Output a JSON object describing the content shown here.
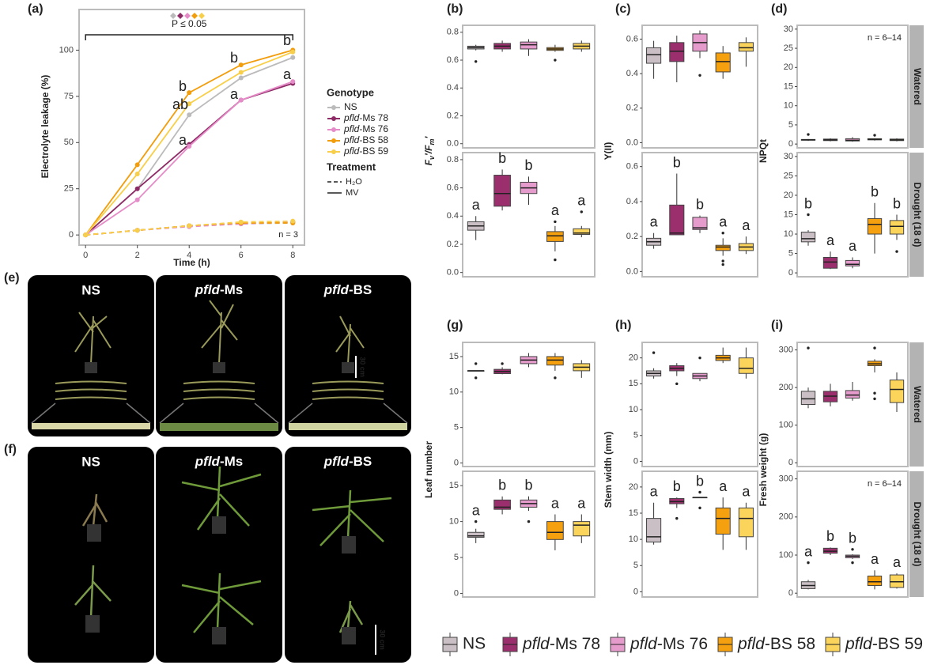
{
  "genotypes": [
    {
      "name": "NS",
      "color": "#c9bfc4"
    },
    {
      "name": "pfld-Ms 78",
      "color": "#9b2f6e"
    },
    {
      "name": "pfld-Ms 76",
      "color": "#e59ccc"
    },
    {
      "name": "pfld-BS 58",
      "color": "#f5a00f"
    },
    {
      "name": "pfld-BS 59",
      "color": "#fbd45c"
    }
  ],
  "chart_data": [
    {
      "type": "line",
      "label": "(a)",
      "ylabel": "Electrolyte leakage (%)",
      "xlabel": "Time (h)",
      "x": [
        0,
        2,
        4,
        6,
        8
      ],
      "xlim": [
        -0.25,
        8.45
      ],
      "xticks": [
        0,
        2,
        4,
        6,
        8
      ],
      "ylim": [
        -5.5,
        122
      ],
      "yticks": [
        0,
        25,
        50,
        75,
        100
      ],
      "p_label": "P ≤ 0.05",
      "n_label": "n = 3",
      "letters": [
        "b",
        "a",
        "b",
        "a",
        "b",
        "ab",
        "a"
      ],
      "legend_title": "Genotype",
      "treatment_title": "Treatment",
      "treatments": [
        {
          "name": "H₂O",
          "dashed": true
        },
        {
          "name": "MV",
          "dashed": false
        }
      ],
      "series": [
        {
          "name": "NS",
          "color": "#bbbbbb",
          "values": [
            0,
            25,
            65,
            85,
            96
          ],
          "values_h2o": [
            0,
            2.5,
            5,
            6,
            6.5
          ]
        },
        {
          "name": "pfld-Ms 78",
          "color": "#8e2a66",
          "values": [
            0,
            25,
            49,
            73,
            82
          ],
          "values_h2o": [
            0,
            2.5,
            5,
            6.5,
            7
          ]
        },
        {
          "name": "pfld-Ms 76",
          "color": "#e58cc8",
          "values": [
            0,
            19,
            48,
            73,
            83
          ],
          "values_h2o": [
            0,
            2.5,
            4.5,
            6,
            7
          ]
        },
        {
          "name": "pfld-BS 58",
          "color": "#f29d0c",
          "values": [
            0,
            38,
            77,
            92,
            100
          ],
          "values_h2o": [
            0,
            2.5,
            5,
            6.5,
            6.5
          ]
        },
        {
          "name": "pfld-BS 59",
          "color": "#f8cf4a",
          "values": [
            0,
            33,
            71,
            88,
            99
          ],
          "values_h2o": [
            0,
            2.5,
            5,
            7,
            7.5
          ]
        }
      ]
    },
    {
      "type": "box",
      "label": "(b)",
      "ylabel": [
        {
          "text": "F"
        },
        {
          "text": "v",
          "sub": true
        },
        {
          "text": "′/F"
        },
        {
          "text": "m",
          "sub": true
        },
        {
          "text": "′"
        }
      ],
      "ylim": [
        -0.03,
        0.85
      ],
      "yticks": [
        {
          "value": 0,
          "label": "0.0"
        },
        0.2,
        0.4,
        0.6,
        0.8
      ],
      "facets": [
        {
          "boxes": [
            {
              "stats": [
                0.67,
                0.68,
                0.69,
                0.7,
                0.71
              ],
              "outliers": [
                0.59
              ]
            },
            {
              "stats": [
                0.66,
                0.68,
                0.7,
                0.72,
                0.74
              ],
              "outliers": []
            },
            {
              "stats": [
                0.63,
                0.68,
                0.71,
                0.73,
                0.75
              ],
              "outliers": []
            },
            {
              "stats": [
                0.66,
                0.67,
                0.68,
                0.69,
                0.71
              ],
              "outliers": [
                0.6
              ]
            },
            {
              "stats": [
                0.66,
                0.68,
                0.7,
                0.72,
                0.74
              ],
              "outliers": []
            }
          ]
        },
        {
          "boxes": [
            {
              "stats": [
                0.23,
                0.3,
                0.33,
                0.36,
                0.4
              ],
              "outliers": []
            },
            {
              "stats": [
                0.44,
                0.47,
                0.56,
                0.69,
                0.73
              ],
              "outliers": []
            },
            {
              "stats": [
                0.48,
                0.56,
                0.6,
                0.64,
                0.68
              ],
              "outliers": []
            },
            {
              "stats": [
                0.15,
                0.22,
                0.26,
                0.29,
                0.33
              ],
              "outliers": [
                0.09,
                0.36
              ]
            },
            {
              "stats": [
                0.25,
                0.27,
                0.28,
                0.31,
                0.33
              ],
              "outliers": [
                0.43
              ]
            }
          ],
          "letters": [
            "a",
            "b",
            "b",
            "a",
            "a"
          ]
        }
      ]
    },
    {
      "type": "box",
      "label": "(c)",
      "ylabel": "Y(II)",
      "ylim": [
        -0.03,
        0.68
      ],
      "yticks": [
        {
          "value": 0,
          "label": "0.0"
        },
        0.2,
        0.4,
        0.6
      ],
      "facets": [
        {
          "boxes": [
            {
              "stats": [
                0.37,
                0.46,
                0.51,
                0.55,
                0.59
              ],
              "outliers": []
            },
            {
              "stats": [
                0.35,
                0.47,
                0.53,
                0.58,
                0.62
              ],
              "outliers": []
            },
            {
              "stats": [
                0.49,
                0.53,
                0.58,
                0.63,
                0.65
              ],
              "outliers": [
                0.39
              ]
            },
            {
              "stats": [
                0.37,
                0.41,
                0.47,
                0.52,
                0.56
              ],
              "outliers": []
            },
            {
              "stats": [
                0.44,
                0.53,
                0.55,
                0.58,
                0.61
              ],
              "outliers": []
            }
          ]
        },
        {
          "boxes": [
            {
              "stats": [
                0.13,
                0.15,
                0.17,
                0.19,
                0.22
              ],
              "outliers": []
            },
            {
              "stats": [
                0.21,
                0.21,
                0.22,
                0.38,
                0.56
              ],
              "outliers": []
            },
            {
              "stats": [
                0.22,
                0.24,
                0.25,
                0.31,
                0.32
              ],
              "outliers": []
            },
            {
              "stats": [
                0.09,
                0.12,
                0.14,
                0.15,
                0.19
              ],
              "outliers": [
                0.22,
                0.06,
                0.04
              ]
            },
            {
              "stats": [
                0.1,
                0.12,
                0.14,
                0.16,
                0.2
              ],
              "outliers": []
            }
          ],
          "letters": [
            "a",
            "b",
            "b",
            "a",
            "a"
          ]
        }
      ]
    },
    {
      "type": "box",
      "label": "(d)",
      "ylabel": "NPQt",
      "ylim": [
        -1,
        31
      ],
      "yticks": [
        0,
        5,
        10,
        15,
        20,
        25,
        30
      ],
      "facets": [
        {
          "name": "Watered",
          "note": "n = 6–14",
          "boxes": [
            {
              "stats": [
                0.8,
                1.0,
                1.1,
                1.2,
                1.3
              ],
              "outliers": [
                2.5
              ]
            },
            {
              "stats": [
                0.7,
                0.9,
                1.1,
                1.3,
                1.5
              ],
              "outliers": []
            },
            {
              "stats": [
                0.6,
                0.8,
                1.0,
                1.4,
                1.8
              ],
              "outliers": []
            },
            {
              "stats": [
                0.9,
                1.1,
                1.2,
                1.4,
                1.5
              ],
              "outliers": [
                2.3
              ]
            },
            {
              "stats": [
                0.7,
                0.9,
                1.1,
                1.3,
                1.5
              ],
              "outliers": []
            }
          ]
        },
        {
          "name": "Drought (18 d)",
          "boxes": [
            {
              "stats": [
                7,
                8,
                8.8,
                10.5,
                11
              ],
              "outliers": [
                15
              ]
            },
            {
              "stats": [
                1,
                1.2,
                2.8,
                4,
                5.5
              ],
              "outliers": []
            },
            {
              "stats": [
                1.2,
                1.8,
                2.2,
                3.2,
                4
              ],
              "outliers": []
            },
            {
              "stats": [
                5,
                10,
                12.5,
                14,
                18
              ],
              "outliers": []
            },
            {
              "stats": [
                8.5,
                10,
                12,
                13.5,
                15
              ],
              "outliers": [
                5.5
              ]
            }
          ],
          "letters": [
            "b",
            "a",
            "a",
            "b",
            "b"
          ]
        }
      ]
    },
    {
      "type": "box",
      "label": "(g)",
      "ylabel": "Leaf number",
      "ylim": [
        -0.5,
        17
      ],
      "yticks": [
        0,
        5,
        10,
        15
      ],
      "facets": [
        {
          "boxes": [
            {
              "stats": [
                13,
                13,
                13,
                13,
                13
              ],
              "outliers": [
                14,
                12
              ]
            },
            {
              "stats": [
                12.5,
                12.6,
                12.9,
                13.2,
                13.5
              ],
              "outliers": [
                14
              ]
            },
            {
              "stats": [
                13.5,
                14,
                14.5,
                15,
                15.5
              ],
              "outliers": []
            },
            {
              "stats": [
                13,
                13.8,
                14.5,
                15,
                15.5
              ],
              "outliers": [
                12
              ]
            },
            {
              "stats": [
                12,
                13,
                13.5,
                14,
                14.5
              ],
              "outliers": []
            }
          ]
        },
        {
          "boxes": [
            {
              "stats": [
                7,
                7.8,
                8,
                8.5,
                9
              ],
              "outliers": [
                10
              ]
            },
            {
              "stats": [
                11,
                11.7,
                12,
                13,
                13.5
              ],
              "outliers": []
            },
            {
              "stats": [
                11.5,
                12,
                12.5,
                13,
                13.5
              ],
              "outliers": [
                10
              ]
            },
            {
              "stats": [
                6,
                7.5,
                8.5,
                10,
                11
              ],
              "outliers": []
            },
            {
              "stats": [
                7,
                8,
                9.5,
                10,
                11
              ],
              "outliers": []
            }
          ],
          "letters": [
            "a",
            "b",
            "b",
            "a",
            "a"
          ]
        }
      ]
    },
    {
      "type": "box",
      "label": "(h)",
      "ylabel": "Stem width (mm)",
      "ylim": [
        -1,
        23
      ],
      "yticks": [
        0,
        5,
        10,
        15,
        20
      ],
      "facets": [
        {
          "boxes": [
            {
              "stats": [
                16,
                16.5,
                17,
                17.5,
                18
              ],
              "outliers": [
                21
              ]
            },
            {
              "stats": [
                16.5,
                17.5,
                18,
                18.5,
                19
              ],
              "outliers": [
                15
              ]
            },
            {
              "stats": [
                15.5,
                16,
                16.5,
                17,
                17
              ],
              "outliers": [
                20
              ]
            },
            {
              "stats": [
                19,
                19.5,
                20,
                20.5,
                22
              ],
              "outliers": []
            },
            {
              "stats": [
                16,
                17,
                18,
                20,
                22
              ],
              "outliers": []
            }
          ]
        },
        {
          "boxes": [
            {
              "stats": [
                9,
                9.5,
                10.5,
                14,
                17
              ],
              "outliers": []
            },
            {
              "stats": [
                16,
                16.8,
                17.2,
                17.8,
                18
              ],
              "outliers": [
                14
              ]
            },
            {
              "stats": [
                18,
                18,
                18,
                18,
                18
              ],
              "outliers": [
                19,
                16
              ]
            },
            {
              "stats": [
                8,
                11,
                14,
                16,
                18
              ],
              "outliers": []
            },
            {
              "stats": [
                8,
                10.5,
                14,
                16,
                17
              ],
              "outliers": []
            }
          ],
          "letters": [
            "a",
            "b",
            "b",
            "a",
            "a"
          ]
        }
      ]
    },
    {
      "type": "box",
      "label": "(i)",
      "ylabel": "Fresh weight (g)",
      "ylim": [
        -10,
        320
      ],
      "yticks": [
        0,
        100,
        200,
        300
      ],
      "facets": [
        {
          "name": "Watered",
          "name_color": "#1a1a5e",
          "boxes": [
            {
              "stats": [
                145,
                155,
                170,
                190,
                200
              ],
              "outliers": [
                305
              ]
            },
            {
              "stats": [
                150,
                162,
                177,
                190,
                210
              ],
              "outliers": []
            },
            {
              "stats": [
                165,
                172,
                180,
                192,
                215
              ],
              "outliers": []
            },
            {
              "stats": [
                240,
                258,
                263,
                270,
                275
              ],
              "outliers": [
                305,
                185,
                170
              ]
            },
            {
              "stats": [
                135,
                160,
                195,
                220,
                240
              ],
              "outliers": []
            }
          ]
        },
        {
          "name": "Drought (18 d)",
          "note": "n = 6–14",
          "boxes": [
            {
              "stats": [
                10,
                12,
                20,
                30,
                35
              ],
              "outliers": [
                80
              ]
            },
            {
              "stats": [
                100,
                105,
                110,
                118,
                120
              ],
              "outliers": []
            },
            {
              "stats": [
                90,
                93,
                97,
                100,
                102
              ],
              "outliers": [
                115,
                80
              ]
            },
            {
              "stats": [
                10,
                20,
                30,
                45,
                60
              ],
              "outliers": []
            },
            {
              "stats": [
                12,
                15,
                30,
                48,
                52
              ],
              "outliers": []
            }
          ],
          "letters": [
            "a",
            "b",
            "b",
            "a",
            "a"
          ]
        }
      ]
    }
  ],
  "images": [
    {
      "label": "(e)",
      "panels": [
        "NS",
        "pfld-Ms",
        "pfld-BS"
      ],
      "scale": "30 cm"
    },
    {
      "label": "(f)",
      "panels": [
        "NS",
        "pfld-Ms",
        "pfld-BS"
      ],
      "scale": "30 cm"
    }
  ]
}
